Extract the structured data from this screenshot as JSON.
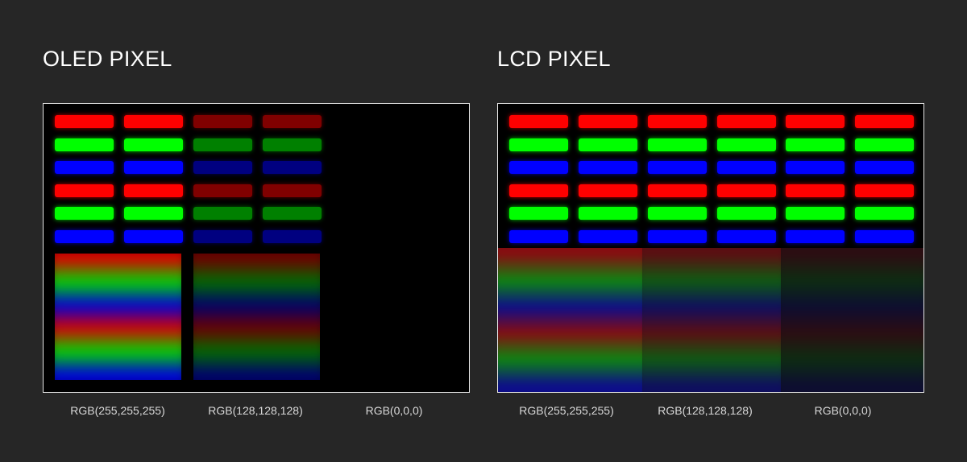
{
  "colors": {
    "background": "#262626",
    "screen": "#000000",
    "red": "#ff0000",
    "green": "#00ff00",
    "blue": "#0000ff"
  },
  "oled": {
    "title": "OLED PIXEL",
    "columns": [
      {
        "label": "RGB(255,255,255)",
        "rgb": [
          255,
          255,
          255
        ]
      },
      {
        "label": "RGB(128,128,128)",
        "rgb": [
          128,
          128,
          128
        ]
      },
      {
        "label": "RGB(0,0,0)",
        "rgb": [
          0,
          0,
          0
        ]
      }
    ]
  },
  "lcd": {
    "title": "LCD PIXEL",
    "columns": [
      {
        "label": "RGB(255,255,255)",
        "rgb": [
          255,
          255,
          255
        ]
      },
      {
        "label": "RGB(128,128,128)",
        "rgb": [
          128,
          128,
          128
        ]
      },
      {
        "label": "RGB(0,0,0)",
        "rgb": [
          0,
          0,
          0
        ]
      }
    ]
  },
  "subpixel_rows": [
    "red",
    "green",
    "blue",
    "red",
    "green",
    "blue"
  ]
}
